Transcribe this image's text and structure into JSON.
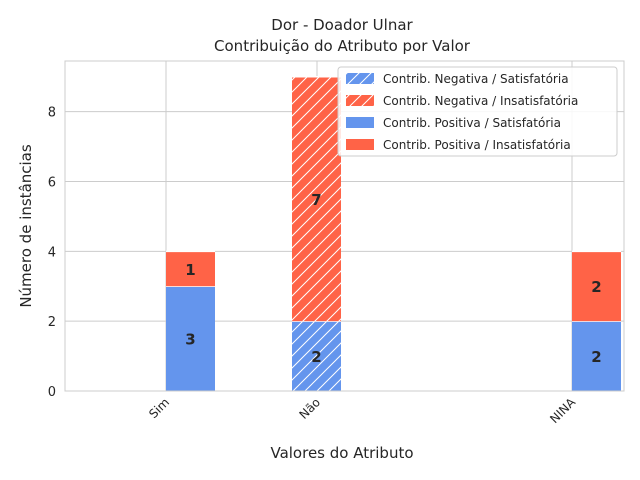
{
  "chart_data": {
    "type": "bar",
    "title": "Dor - Doador Ulnar",
    "subtitle": "Contribuição do Atributo por Valor",
    "xlabel": "Valores do Atributo",
    "ylabel": "Número de instâncias",
    "categories": [
      "Sim",
      "Não",
      "NINA"
    ],
    "ylim": [
      0,
      9.45
    ],
    "yticks": [
      0,
      2,
      4,
      6,
      8
    ],
    "grid": true,
    "legend_position": "top-right",
    "stacked": true,
    "series": [
      {
        "name": "Contrib. Negativa / Satisfatória",
        "group": "negativa",
        "values": [
          0,
          2,
          0
        ],
        "color": "#6495ED",
        "hatch": true
      },
      {
        "name": "Contrib. Negativa / Insatisfatória",
        "group": "negativa",
        "values": [
          0,
          7,
          0
        ],
        "color": "#FF6347",
        "hatch": true
      },
      {
        "name": "Contrib. Positiva / Satisfatória",
        "group": "positiva",
        "values": [
          3,
          0,
          2
        ],
        "color": "#6495ED",
        "hatch": false
      },
      {
        "name": "Contrib. Positiva / Insatisfatória",
        "group": "positiva",
        "values": [
          1,
          0,
          2
        ],
        "color": "#FF6347",
        "hatch": false
      }
    ],
    "data_labels": [
      {
        "category": "Sim",
        "series": "Contrib. Positiva / Satisfatória",
        "text": "3"
      },
      {
        "category": "Sim",
        "series": "Contrib. Positiva / Insatisfatória",
        "text": "1"
      },
      {
        "category": "Não",
        "series": "Contrib. Negativa / Satisfatória",
        "text": "2"
      },
      {
        "category": "Não",
        "series": "Contrib. Negativa / Insatisfatória",
        "text": "7"
      },
      {
        "category": "NINA",
        "series": "Contrib. Positiva / Satisfatória",
        "text": "2"
      },
      {
        "category": "NINA",
        "series": "Contrib. Positiva / Insatisfatória",
        "text": "2"
      }
    ]
  }
}
